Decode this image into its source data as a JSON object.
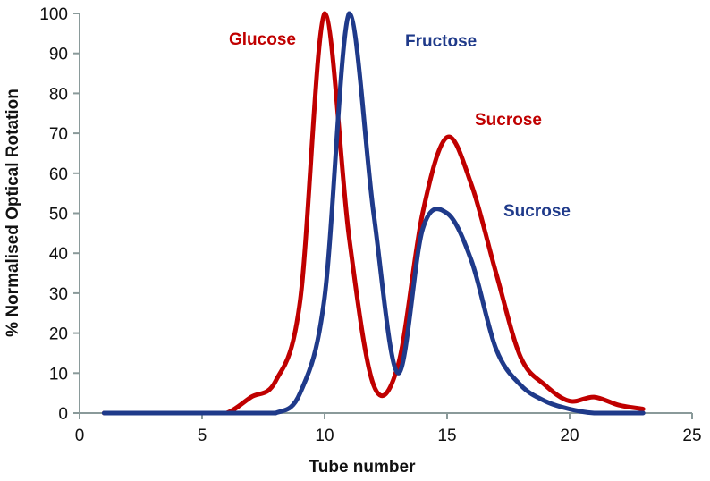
{
  "chart_data": {
    "type": "line",
    "title": "",
    "xlabel": "Tube number",
    "ylabel": "% Normalised Optical Rotation",
    "xlim": [
      0,
      25
    ],
    "ylim": [
      0,
      100
    ],
    "x_ticks": [
      0,
      5,
      10,
      15,
      20,
      25
    ],
    "y_ticks": [
      0,
      10,
      20,
      30,
      40,
      50,
      60,
      70,
      80,
      90,
      100
    ],
    "grid": false,
    "legend": "none (inline annotations)",
    "x": [
      1,
      2,
      3,
      4,
      5,
      6,
      7,
      8,
      9,
      10,
      11,
      12,
      13,
      14,
      15,
      16,
      17,
      18,
      19,
      20,
      21,
      22,
      23
    ],
    "series": [
      {
        "name": "Red series (Glucose / Sucrose)",
        "color": "#c00000",
        "values": [
          0,
          0,
          0,
          0,
          0,
          0,
          4,
          8,
          28,
          100,
          44,
          7,
          12,
          50,
          69,
          57,
          35,
          14,
          7,
          3,
          4,
          2,
          1
        ]
      },
      {
        "name": "Blue series (Fructose / Sucrose)",
        "color": "#1f3a8a",
        "values": [
          0,
          0,
          0,
          0,
          0,
          0,
          0,
          0,
          5,
          29,
          100,
          50,
          10,
          46,
          50,
          38,
          16,
          7,
          3,
          1,
          0,
          0,
          0
        ]
      }
    ],
    "annotations": [
      {
        "text": "Glucose",
        "color": "#c00000",
        "x": 8.5,
        "y": 94
      },
      {
        "text": "Fructose",
        "color": "#1f3a8a",
        "x": 12.9,
        "y": 93.5
      },
      {
        "text": "Sucrose",
        "color": "#c00000",
        "x": 17.0,
        "y": 73
      },
      {
        "text": "Sucrose",
        "color": "#1f3a8a",
        "x": 18.4,
        "y": 50
      }
    ]
  },
  "labels": {
    "glucose": "Glucose",
    "fructose": "Fructose",
    "sucrose_red": "Sucrose",
    "sucrose_blue": "Sucrose",
    "xlabel": "Tube number",
    "ylabel": "% Normalised Optical Rotation"
  }
}
